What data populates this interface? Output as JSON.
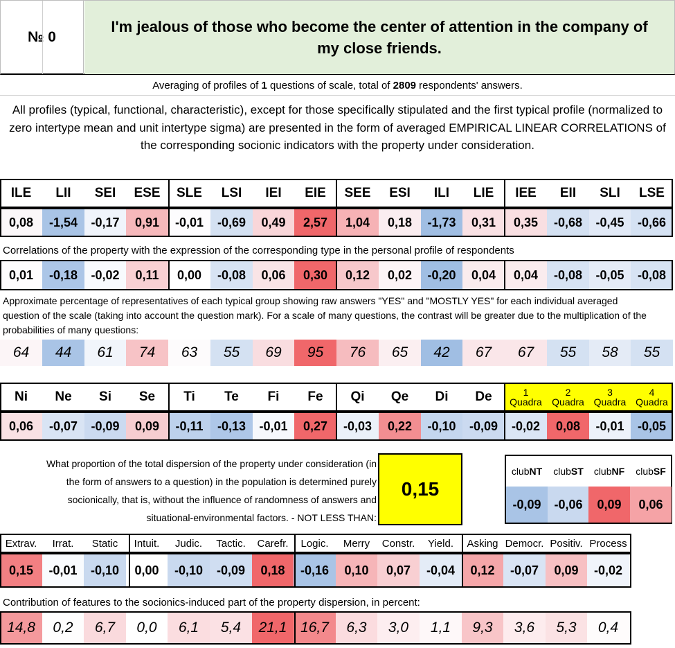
{
  "header": {
    "number_label": "№ 0",
    "question": "I'm jealous of those who become the center of attention in the company of my close friends."
  },
  "info": {
    "averaging_pre": "Averaging of profiles of ",
    "averaging_questions": "1",
    "averaging_mid": " questions of scale, total of ",
    "averaging_respondents": "2809",
    "averaging_post": " respondents' answers.",
    "description": "All profiles (typical, functional, characteristic), except for those specifically stipulated and the first typical profile (normalized to zero intertype mean and unit intertype sigma) are presented in the form of averaged EMPIRICAL LINEAR CORRELATIONS of the corresponding socionic indicators with the property under consideration."
  },
  "types": {
    "headers": [
      "ILE",
      "LII",
      "SEI",
      "ESE",
      "SLE",
      "LSI",
      "IEI",
      "EIE",
      "SEE",
      "ESI",
      "ILI",
      "LIE",
      "IEE",
      "EII",
      "SLI",
      "LSE"
    ],
    "values": [
      "0,08",
      "-1,54",
      "-0,17",
      "0,91",
      "-0,01",
      "-0,69",
      "0,49",
      "2,57",
      "1,04",
      "0,18",
      "-1,73",
      "0,31",
      "0,35",
      "-0,68",
      "-0,45",
      "-0,66"
    ],
    "colors": [
      "#fbf7f9",
      "#a9c4e6",
      "#f0f4fb",
      "#f6b8bb",
      "#fdfcfe",
      "#d4e1f2",
      "#f9d6d9",
      "#f0676a",
      "#f6b2b5",
      "#faedf0",
      "#a0bee3",
      "#f9e1e4",
      "#f9dfe2",
      "#d4e1f2",
      "#e1e9f6",
      "#d5e2f3"
    ]
  },
  "correlation": {
    "label": "Correlations of the property with the expression of the corresponding type in the personal profile of respondents",
    "values": [
      "0,01",
      "-0,18",
      "-0,02",
      "0,11",
      "0,00",
      "-0,08",
      "0,06",
      "0,30",
      "0,12",
      "0,02",
      "-0,20",
      "0,04",
      "0,04",
      "-0,08",
      "-0,05",
      "-0,08"
    ],
    "colors": [
      "#fefcfd",
      "#acc6e7",
      "#f8fafd",
      "#f8d0d3",
      "#ffffff",
      "#d7e3f3",
      "#f9e4e6",
      "#f0676a",
      "#f7c8cb",
      "#fcf4f6",
      "#a0bee3",
      "#faecee",
      "#faecee",
      "#d7e3f3",
      "#e5ecf7",
      "#d7e3f3"
    ]
  },
  "percentage": {
    "label": "Approximate percentage of representatives of each typical group showing raw answers \"YES\" and \"MOSTLY YES\" for each individual averaged question of the scale (taking into account the question mark). For a scale of many questions, the contrast will be greater due to the multiplication of the probabilities of many questions:",
    "values": [
      "64",
      "44",
      "61",
      "74",
      "63",
      "55",
      "69",
      "95",
      "76",
      "65",
      "42",
      "67",
      "67",
      "55",
      "58",
      "55"
    ],
    "colors": [
      "#fcf5f7",
      "#a9c4e6",
      "#f1f5fb",
      "#f7c3c6",
      "#fdfbfc",
      "#d4e1f2",
      "#f9dde0",
      "#f0676a",
      "#f6bcbf",
      "#fbeff1",
      "#a0bee3",
      "#fae6e9",
      "#fae6e9",
      "#d4e1f2",
      "#e4ebf6",
      "#d4e1f2"
    ]
  },
  "functions": {
    "headers": [
      "Ni",
      "Ne",
      "Si",
      "Se",
      "Ti",
      "Te",
      "Fi",
      "Fe",
      "Qi",
      "Qe",
      "Di",
      "De"
    ],
    "values": [
      "0,06",
      "-0,07",
      "-0,09",
      "0,09",
      "-0,11",
      "-0,13",
      "-0,01",
      "0,27",
      "-0,03",
      "0,22",
      "-0,10",
      "-0,09"
    ],
    "colors": [
      "#f9e1e4",
      "#d9e4f4",
      "#cbdaf0",
      "#f6cdd0",
      "#bdd1ec",
      "#aec7e8",
      "#f6f8fc",
      "#f0676a",
      "#ebf1f9",
      "#f28e91",
      "#c4d6ee",
      "#cbdaf0"
    ]
  },
  "quadras": {
    "headers": [
      {
        "num": "1",
        "name": "Quadra"
      },
      {
        "num": "2",
        "name": "Quadra"
      },
      {
        "num": "3",
        "name": "Quadra"
      },
      {
        "num": "4",
        "name": "Quadra"
      }
    ],
    "header_color": "#ffff00",
    "values": [
      "-0,02",
      "0,08",
      "-0,01",
      "-0,05"
    ],
    "colors": [
      "#dbe6f5",
      "#f0676a",
      "#edf2fa",
      "#a9c4e6"
    ]
  },
  "dispersion": {
    "text": "What proportion of the total dispersion of the property under consideration (in the form of answers to a question) in the population is determined purely socionically, that is, without the influence of randomness of answers and situational-environmental factors. - NOT LESS THAN:",
    "value": "0,15",
    "value_color": "#ffff00"
  },
  "clubs": {
    "headers": [
      {
        "pre": "club",
        "bold": "NT"
      },
      {
        "pre": "club",
        "bold": "ST"
      },
      {
        "pre": "club",
        "bold": "NF"
      },
      {
        "pre": "club",
        "bold": "SF"
      }
    ],
    "values": [
      "-0,09",
      "-0,06",
      "0,09",
      "0,06"
    ],
    "colors": [
      "#a9c4e6",
      "#c9d9ef",
      "#f0676a",
      "#f5a3a6"
    ]
  },
  "traits": {
    "headers": [
      "Extrav.",
      "Irrat.",
      "Static",
      "Intuit.",
      "Judic.",
      "Tactic.",
      "Carefr.",
      "Logic.",
      "Merry",
      "Constr.",
      "Yield.",
      "Asking",
      "Democr.",
      "Positiv.",
      "Process"
    ],
    "values": [
      "0,15",
      "-0,01",
      "-0,10",
      "0,00",
      "-0,10",
      "-0,09",
      "0,18",
      "-0,16",
      "0,10",
      "0,07",
      "-0,04",
      "0,12",
      "-0,07",
      "0,09",
      "-0,02"
    ],
    "colors": [
      "#f27f82",
      "#f9fbfe",
      "#c9d9ef",
      "#ffffff",
      "#c9d9ef",
      "#d0def1",
      "#f0676a",
      "#a9c4e6",
      "#f6b5b8",
      "#f8cfd2",
      "#e4ecf7",
      "#f5a6a9",
      "#d9e4f4",
      "#f7c0c3",
      "#f0f4fb"
    ]
  },
  "contribution": {
    "label": "Contribution of features to the socionics-induced part of the property dispersion, in percent:",
    "values": [
      "14,8",
      "0,2",
      "6,7",
      "0,0",
      "6,1",
      "5,4",
      "21,1",
      "16,7",
      "6,3",
      "3,0",
      "1,1",
      "9,3",
      "3,6",
      "5,3",
      "0,4"
    ],
    "colors": [
      "#f4999c",
      "#fefdfd",
      "#fadadd",
      "#ffffff",
      "#fbdde0",
      "#fbe1e4",
      "#f0676a",
      "#f3898c",
      "#fbdcdf",
      "#fdeef0",
      "#fef8f9",
      "#f8c5c8",
      "#fdecee",
      "#fbe2e4",
      "#fefcfc"
    ]
  },
  "colors": {
    "title_bg": "#e2efda",
    "yellow": "#ffff00"
  }
}
